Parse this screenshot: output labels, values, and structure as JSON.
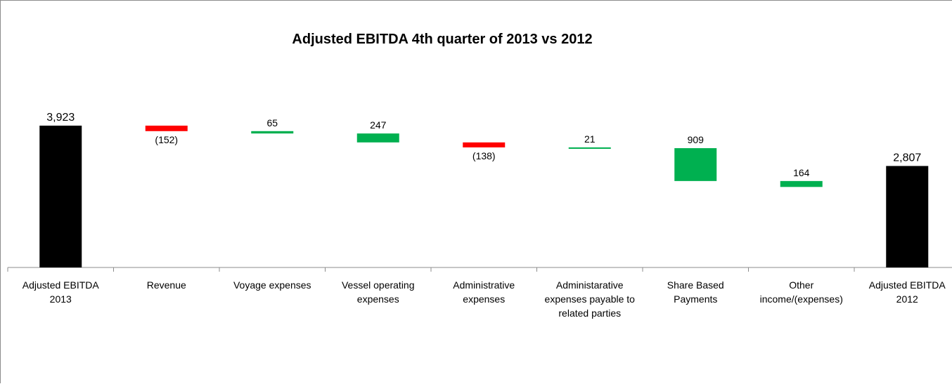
{
  "chart_data": {
    "type": "bar",
    "subtype": "waterfall",
    "title": "Adjusted EBITDA 4th quarter of 2013 vs 2012",
    "xlabel": "",
    "ylabel": "",
    "grid": false,
    "legend": "none",
    "categories": [
      [
        "Adjusted EBITDA",
        "2013"
      ],
      [
        "Revenue"
      ],
      [
        "Voyage expenses"
      ],
      [
        "Vessel operating",
        "expenses"
      ],
      [
        "Administrative",
        "expenses"
      ],
      [
        "Administarative",
        "expenses payable to",
        "related parties"
      ],
      [
        "Share Based",
        "Payments"
      ],
      [
        "Other",
        "income/(expenses)"
      ],
      [
        "Adjusted EBITDA",
        "2012"
      ]
    ],
    "bars": [
      {
        "kind": "total",
        "value": 3923,
        "label": "3,923"
      },
      {
        "kind": "decrease",
        "value": 152,
        "label": "(152)"
      },
      {
        "kind": "increase",
        "value": 65,
        "label": "65"
      },
      {
        "kind": "increase",
        "value": 247,
        "label": "247"
      },
      {
        "kind": "decrease",
        "value": 138,
        "label": "(138)"
      },
      {
        "kind": "increase",
        "value": 21,
        "label": "21"
      },
      {
        "kind": "increase",
        "value": 909,
        "label": "909"
      },
      {
        "kind": "increase",
        "value": 164,
        "label": "164"
      },
      {
        "kind": "total",
        "value": 2807,
        "label": "2,807"
      }
    ],
    "colors": {
      "total": "#000000",
      "increase": "#00b050",
      "decrease": "#ff0000",
      "axis": "#8c8c8c"
    }
  }
}
